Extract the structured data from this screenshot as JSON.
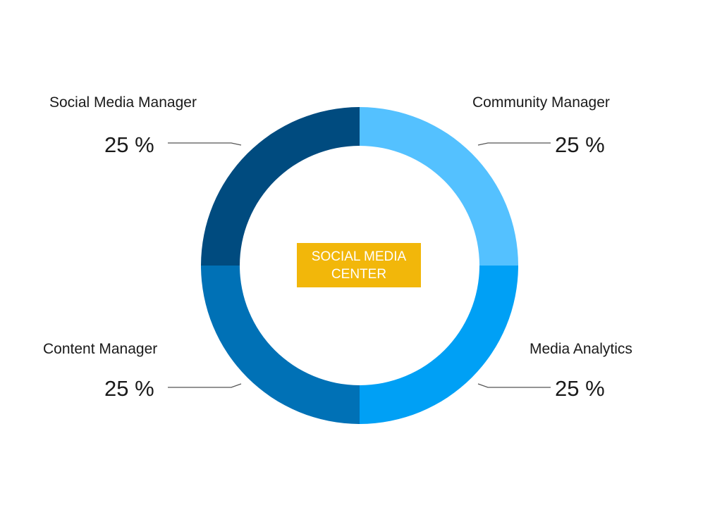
{
  "center_label": "SOCIAL MEDIA\nCENTER",
  "colors": {
    "center_badge": "#f2b70a",
    "social_media_manager": "#004b7f",
    "community_manager": "#54c1ff",
    "media_analytics": "#00a0f5",
    "content_manager": "#0071b6"
  },
  "chart_data": {
    "type": "pie",
    "variant": "donut",
    "title": "",
    "slices": [
      {
        "name": "Community Manager",
        "value": 25,
        "value_label": "25 %",
        "color": "#54c1ff",
        "position": "top-right"
      },
      {
        "name": "Media Analytics",
        "value": 25,
        "value_label": "25 %",
        "color": "#00a0f5",
        "position": "bottom-right"
      },
      {
        "name": "Content Manager",
        "value": 25,
        "value_label": "25 %",
        "color": "#0071b6",
        "position": "bottom-left"
      },
      {
        "name": "Social Media Manager",
        "value": 25,
        "value_label": "25 %",
        "color": "#004b7f",
        "position": "top-left"
      }
    ],
    "legend": "none"
  }
}
